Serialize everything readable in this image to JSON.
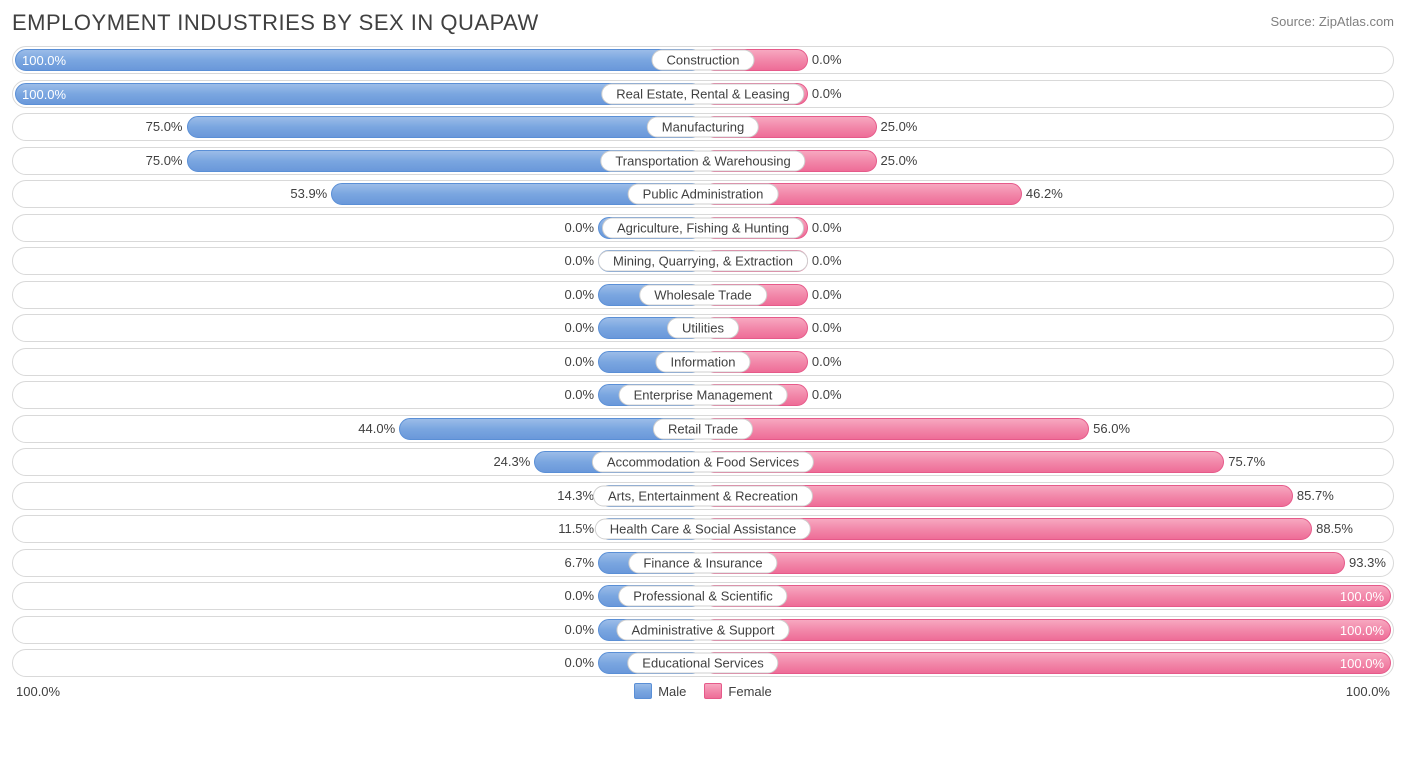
{
  "title": "EMPLOYMENT INDUSTRIES BY SEX IN QUAPAW",
  "source": "Source: ZipAtlas.com",
  "axis_left": "100.0%",
  "axis_right": "100.0%",
  "legend": {
    "male": "Male",
    "female": "Female"
  },
  "colors": {
    "male_fill": "#7aa6e0",
    "male_border": "#5a8fd6",
    "female_fill": "#f288aa",
    "female_border": "#e65a8a",
    "row_border": "#d9d9d9",
    "text": "#404040",
    "text_light": "#808080",
    "min_bar_pct": 15
  },
  "rows": [
    {
      "label": "Construction",
      "male": 100.0,
      "female": 0.0,
      "male_txt": "100.0%",
      "female_txt": "0.0%"
    },
    {
      "label": "Real Estate, Rental & Leasing",
      "male": 100.0,
      "female": 0.0,
      "male_txt": "100.0%",
      "female_txt": "0.0%"
    },
    {
      "label": "Manufacturing",
      "male": 75.0,
      "female": 25.0,
      "male_txt": "75.0%",
      "female_txt": "25.0%"
    },
    {
      "label": "Transportation & Warehousing",
      "male": 75.0,
      "female": 25.0,
      "male_txt": "75.0%",
      "female_txt": "25.0%"
    },
    {
      "label": "Public Administration",
      "male": 53.9,
      "female": 46.2,
      "male_txt": "53.9%",
      "female_txt": "46.2%"
    },
    {
      "label": "Agriculture, Fishing & Hunting",
      "male": 0.0,
      "female": 0.0,
      "male_txt": "0.0%",
      "female_txt": "0.0%"
    },
    {
      "label": "Mining, Quarrying, & Extraction",
      "male": 0.0,
      "female": 0.0,
      "male_txt": "0.0%",
      "female_txt": "0.0%"
    },
    {
      "label": "Wholesale Trade",
      "male": 0.0,
      "female": 0.0,
      "male_txt": "0.0%",
      "female_txt": "0.0%"
    },
    {
      "label": "Utilities",
      "male": 0.0,
      "female": 0.0,
      "male_txt": "0.0%",
      "female_txt": "0.0%"
    },
    {
      "label": "Information",
      "male": 0.0,
      "female": 0.0,
      "male_txt": "0.0%",
      "female_txt": "0.0%"
    },
    {
      "label": "Enterprise Management",
      "male": 0.0,
      "female": 0.0,
      "male_txt": "0.0%",
      "female_txt": "0.0%"
    },
    {
      "label": "Retail Trade",
      "male": 44.0,
      "female": 56.0,
      "male_txt": "44.0%",
      "female_txt": "56.0%"
    },
    {
      "label": "Accommodation & Food Services",
      "male": 24.3,
      "female": 75.7,
      "male_txt": "24.3%",
      "female_txt": "75.7%"
    },
    {
      "label": "Arts, Entertainment & Recreation",
      "male": 14.3,
      "female": 85.7,
      "male_txt": "14.3%",
      "female_txt": "85.7%"
    },
    {
      "label": "Health Care & Social Assistance",
      "male": 11.5,
      "female": 88.5,
      "male_txt": "11.5%",
      "female_txt": "88.5%"
    },
    {
      "label": "Finance & Insurance",
      "male": 6.7,
      "female": 93.3,
      "male_txt": "6.7%",
      "female_txt": "93.3%"
    },
    {
      "label": "Professional & Scientific",
      "male": 0.0,
      "female": 100.0,
      "male_txt": "0.0%",
      "female_txt": "100.0%"
    },
    {
      "label": "Administrative & Support",
      "male": 0.0,
      "female": 100.0,
      "male_txt": "0.0%",
      "female_txt": "100.0%"
    },
    {
      "label": "Educational Services",
      "male": 0.0,
      "female": 100.0,
      "male_txt": "0.0%",
      "female_txt": "100.0%"
    }
  ]
}
